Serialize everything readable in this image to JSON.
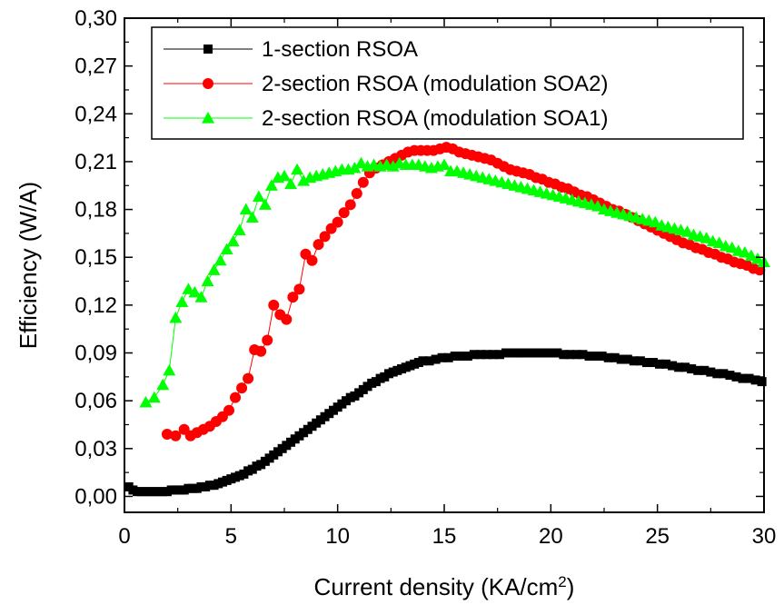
{
  "chart_data": {
    "type": "scatter",
    "xlabel": "Current density (KA/cm",
    "xlabel_sup": "2",
    "xlabel_end": ")",
    "ylabel": "Efficiency (W/A)",
    "xlim": [
      0,
      30
    ],
    "ylim": [
      -0.01,
      0.3
    ],
    "x_ticks": [
      0,
      5,
      10,
      15,
      20,
      25,
      30
    ],
    "x_tick_labels": [
      "0",
      "5",
      "10",
      "15",
      "20",
      "25",
      "30"
    ],
    "y_ticks": [
      0.0,
      0.03,
      0.06,
      0.09,
      0.12,
      0.15,
      0.18,
      0.21,
      0.24,
      0.27,
      0.3
    ],
    "y_tick_labels": [
      "0,00",
      "0,03",
      "0,06",
      "0,09",
      "0,12",
      "0,15",
      "0,18",
      "0,21",
      "0,24",
      "0,27",
      "0,30"
    ],
    "grid": false,
    "legend_position": "top",
    "series": [
      {
        "name": "1-section RSOA",
        "color": "#000000",
        "marker": "square",
        "x": [
          0.2,
          0.4,
          0.6,
          0.8,
          1.0,
          1.2,
          1.4,
          1.6,
          1.8,
          2.0,
          2.2,
          2.4,
          2.6,
          2.8,
          3.0,
          3.2,
          3.4,
          3.6,
          3.8,
          4.0,
          4.2,
          4.4,
          4.6,
          4.8,
          5.0,
          5.2,
          5.4,
          5.6,
          5.8,
          6.0,
          6.2,
          6.4,
          6.6,
          6.8,
          7.0,
          7.2,
          7.4,
          7.6,
          7.8,
          8.0,
          8.2,
          8.4,
          8.6,
          8.8,
          9.0,
          9.2,
          9.4,
          9.6,
          9.8,
          10.0,
          10.2,
          10.4,
          10.6,
          10.8,
          11.0,
          11.2,
          11.4,
          11.6,
          11.8,
          12.0,
          12.2,
          12.4,
          12.6,
          12.8,
          13.0,
          13.2,
          13.4,
          13.6,
          13.8,
          14.0,
          14.3,
          14.6,
          14.9,
          15.2,
          15.5,
          15.8,
          16.1,
          16.4,
          16.7,
          17.0,
          17.3,
          17.6,
          17.9,
          18.2,
          18.5,
          18.8,
          19.1,
          19.4,
          19.7,
          20.0,
          20.3,
          20.6,
          20.9,
          21.2,
          21.5,
          21.8,
          22.1,
          22.4,
          22.7,
          23.0,
          23.3,
          23.6,
          23.9,
          24.2,
          24.5,
          24.8,
          25.1,
          25.4,
          25.7,
          26.0,
          26.3,
          26.6,
          26.9,
          27.2,
          27.5,
          27.8,
          28.1,
          28.4,
          28.7,
          29.0,
          29.3,
          29.6,
          29.9
        ],
        "y": [
          0.006,
          0.004,
          0.003,
          0.003,
          0.003,
          0.003,
          0.003,
          0.003,
          0.003,
          0.003,
          0.004,
          0.004,
          0.004,
          0.004,
          0.005,
          0.005,
          0.005,
          0.006,
          0.006,
          0.007,
          0.007,
          0.008,
          0.009,
          0.01,
          0.011,
          0.012,
          0.013,
          0.014,
          0.016,
          0.017,
          0.019,
          0.02,
          0.022,
          0.024,
          0.026,
          0.028,
          0.03,
          0.032,
          0.034,
          0.036,
          0.038,
          0.04,
          0.042,
          0.044,
          0.046,
          0.048,
          0.05,
          0.052,
          0.054,
          0.056,
          0.058,
          0.06,
          0.062,
          0.063,
          0.065,
          0.067,
          0.069,
          0.071,
          0.072,
          0.074,
          0.075,
          0.077,
          0.078,
          0.079,
          0.08,
          0.081,
          0.082,
          0.083,
          0.084,
          0.085,
          0.085,
          0.086,
          0.087,
          0.087,
          0.088,
          0.088,
          0.088,
          0.089,
          0.089,
          0.089,
          0.089,
          0.089,
          0.09,
          0.09,
          0.09,
          0.09,
          0.09,
          0.09,
          0.09,
          0.09,
          0.09,
          0.089,
          0.089,
          0.089,
          0.089,
          0.088,
          0.088,
          0.088,
          0.087,
          0.087,
          0.086,
          0.086,
          0.085,
          0.085,
          0.084,
          0.084,
          0.083,
          0.083,
          0.082,
          0.081,
          0.081,
          0.08,
          0.079,
          0.079,
          0.078,
          0.077,
          0.077,
          0.076,
          0.075,
          0.074,
          0.074,
          0.073,
          0.072
        ]
      },
      {
        "name": "2-section RSOA (modulation SOA2)",
        "color": "#ff0000",
        "marker": "circle",
        "x": [
          2.0,
          2.4,
          2.8,
          3.1,
          3.4,
          3.7,
          4.0,
          4.3,
          4.6,
          4.9,
          5.2,
          5.5,
          5.8,
          6.1,
          6.4,
          6.7,
          7.0,
          7.3,
          7.6,
          7.9,
          8.2,
          8.5,
          8.8,
          9.1,
          9.4,
          9.7,
          10.0,
          10.3,
          10.6,
          10.9,
          11.2,
          11.5,
          11.8,
          12.1,
          12.4,
          12.7,
          13.0,
          13.3,
          13.6,
          13.9,
          14.2,
          14.5,
          14.8,
          15.1,
          15.4,
          15.7,
          16.0,
          16.3,
          16.6,
          16.9,
          17.2,
          17.5,
          17.8,
          18.1,
          18.4,
          18.7,
          19.0,
          19.3,
          19.6,
          19.9,
          20.2,
          20.5,
          20.8,
          21.1,
          21.4,
          21.7,
          22.0,
          22.3,
          22.6,
          22.9,
          23.2,
          23.5,
          23.8,
          24.1,
          24.4,
          24.7,
          25.0,
          25.3,
          25.6,
          25.9,
          26.2,
          26.5,
          26.8,
          27.1,
          27.4,
          27.7,
          28.0,
          28.3,
          28.6,
          28.9,
          29.2,
          29.5,
          29.8
        ],
        "y": [
          0.039,
          0.038,
          0.042,
          0.038,
          0.04,
          0.042,
          0.044,
          0.047,
          0.05,
          0.054,
          0.062,
          0.068,
          0.074,
          0.092,
          0.091,
          0.098,
          0.12,
          0.114,
          0.111,
          0.125,
          0.13,
          0.152,
          0.148,
          0.158,
          0.163,
          0.168,
          0.172,
          0.178,
          0.183,
          0.19,
          0.197,
          0.203,
          0.206,
          0.208,
          0.21,
          0.212,
          0.214,
          0.216,
          0.217,
          0.217,
          0.217,
          0.217,
          0.218,
          0.219,
          0.218,
          0.216,
          0.215,
          0.214,
          0.213,
          0.212,
          0.211,
          0.209,
          0.207,
          0.205,
          0.204,
          0.203,
          0.202,
          0.2,
          0.199,
          0.197,
          0.196,
          0.194,
          0.193,
          0.191,
          0.189,
          0.188,
          0.186,
          0.184,
          0.182,
          0.18,
          0.179,
          0.177,
          0.175,
          0.173,
          0.171,
          0.169,
          0.167,
          0.165,
          0.163,
          0.161,
          0.159,
          0.158,
          0.156,
          0.155,
          0.153,
          0.152,
          0.15,
          0.149,
          0.147,
          0.146,
          0.145,
          0.143,
          0.142
        ]
      },
      {
        "name": "2-section RSOA (modulation SOA1)",
        "color": "#00ff00",
        "marker": "triangle",
        "x": [
          1.0,
          1.4,
          1.8,
          2.1,
          2.4,
          2.7,
          3.0,
          3.3,
          3.6,
          3.9,
          4.2,
          4.5,
          4.8,
          5.1,
          5.4,
          5.7,
          6.0,
          6.3,
          6.6,
          6.9,
          7.2,
          7.5,
          7.8,
          8.1,
          8.4,
          8.7,
          9.0,
          9.3,
          9.6,
          9.9,
          10.2,
          10.5,
          10.8,
          11.1,
          11.4,
          11.7,
          12.0,
          12.3,
          12.6,
          12.9,
          13.2,
          13.5,
          13.8,
          14.1,
          14.4,
          14.7,
          15.0,
          15.3,
          15.6,
          15.9,
          16.2,
          16.5,
          16.8,
          17.1,
          17.4,
          17.7,
          18.0,
          18.3,
          18.6,
          18.9,
          19.2,
          19.5,
          19.8,
          20.1,
          20.4,
          20.7,
          21.0,
          21.3,
          21.6,
          21.9,
          22.2,
          22.5,
          22.8,
          23.1,
          23.4,
          23.7,
          24.0,
          24.3,
          24.6,
          24.9,
          25.2,
          25.5,
          25.8,
          26.1,
          26.4,
          26.7,
          27.0,
          27.3,
          27.6,
          27.9,
          28.2,
          28.5,
          28.8,
          29.1,
          29.4,
          29.7,
          30.0
        ],
        "y": [
          0.059,
          0.062,
          0.07,
          0.079,
          0.112,
          0.122,
          0.13,
          0.128,
          0.125,
          0.135,
          0.142,
          0.148,
          0.155,
          0.16,
          0.167,
          0.18,
          0.175,
          0.188,
          0.183,
          0.195,
          0.2,
          0.201,
          0.196,
          0.205,
          0.198,
          0.2,
          0.201,
          0.202,
          0.203,
          0.204,
          0.205,
          0.205,
          0.206,
          0.209,
          0.207,
          0.208,
          0.207,
          0.208,
          0.207,
          0.209,
          0.208,
          0.208,
          0.208,
          0.207,
          0.206,
          0.207,
          0.208,
          0.204,
          0.204,
          0.203,
          0.202,
          0.201,
          0.2,
          0.199,
          0.198,
          0.197,
          0.196,
          0.195,
          0.194,
          0.193,
          0.192,
          0.191,
          0.19,
          0.189,
          0.188,
          0.187,
          0.186,
          0.185,
          0.184,
          0.183,
          0.182,
          0.18,
          0.179,
          0.178,
          0.177,
          0.176,
          0.175,
          0.174,
          0.173,
          0.172,
          0.17,
          0.169,
          0.168,
          0.167,
          0.166,
          0.164,
          0.163,
          0.162,
          0.16,
          0.159,
          0.157,
          0.156,
          0.154,
          0.153,
          0.151,
          0.149,
          0.147
        ]
      }
    ]
  }
}
